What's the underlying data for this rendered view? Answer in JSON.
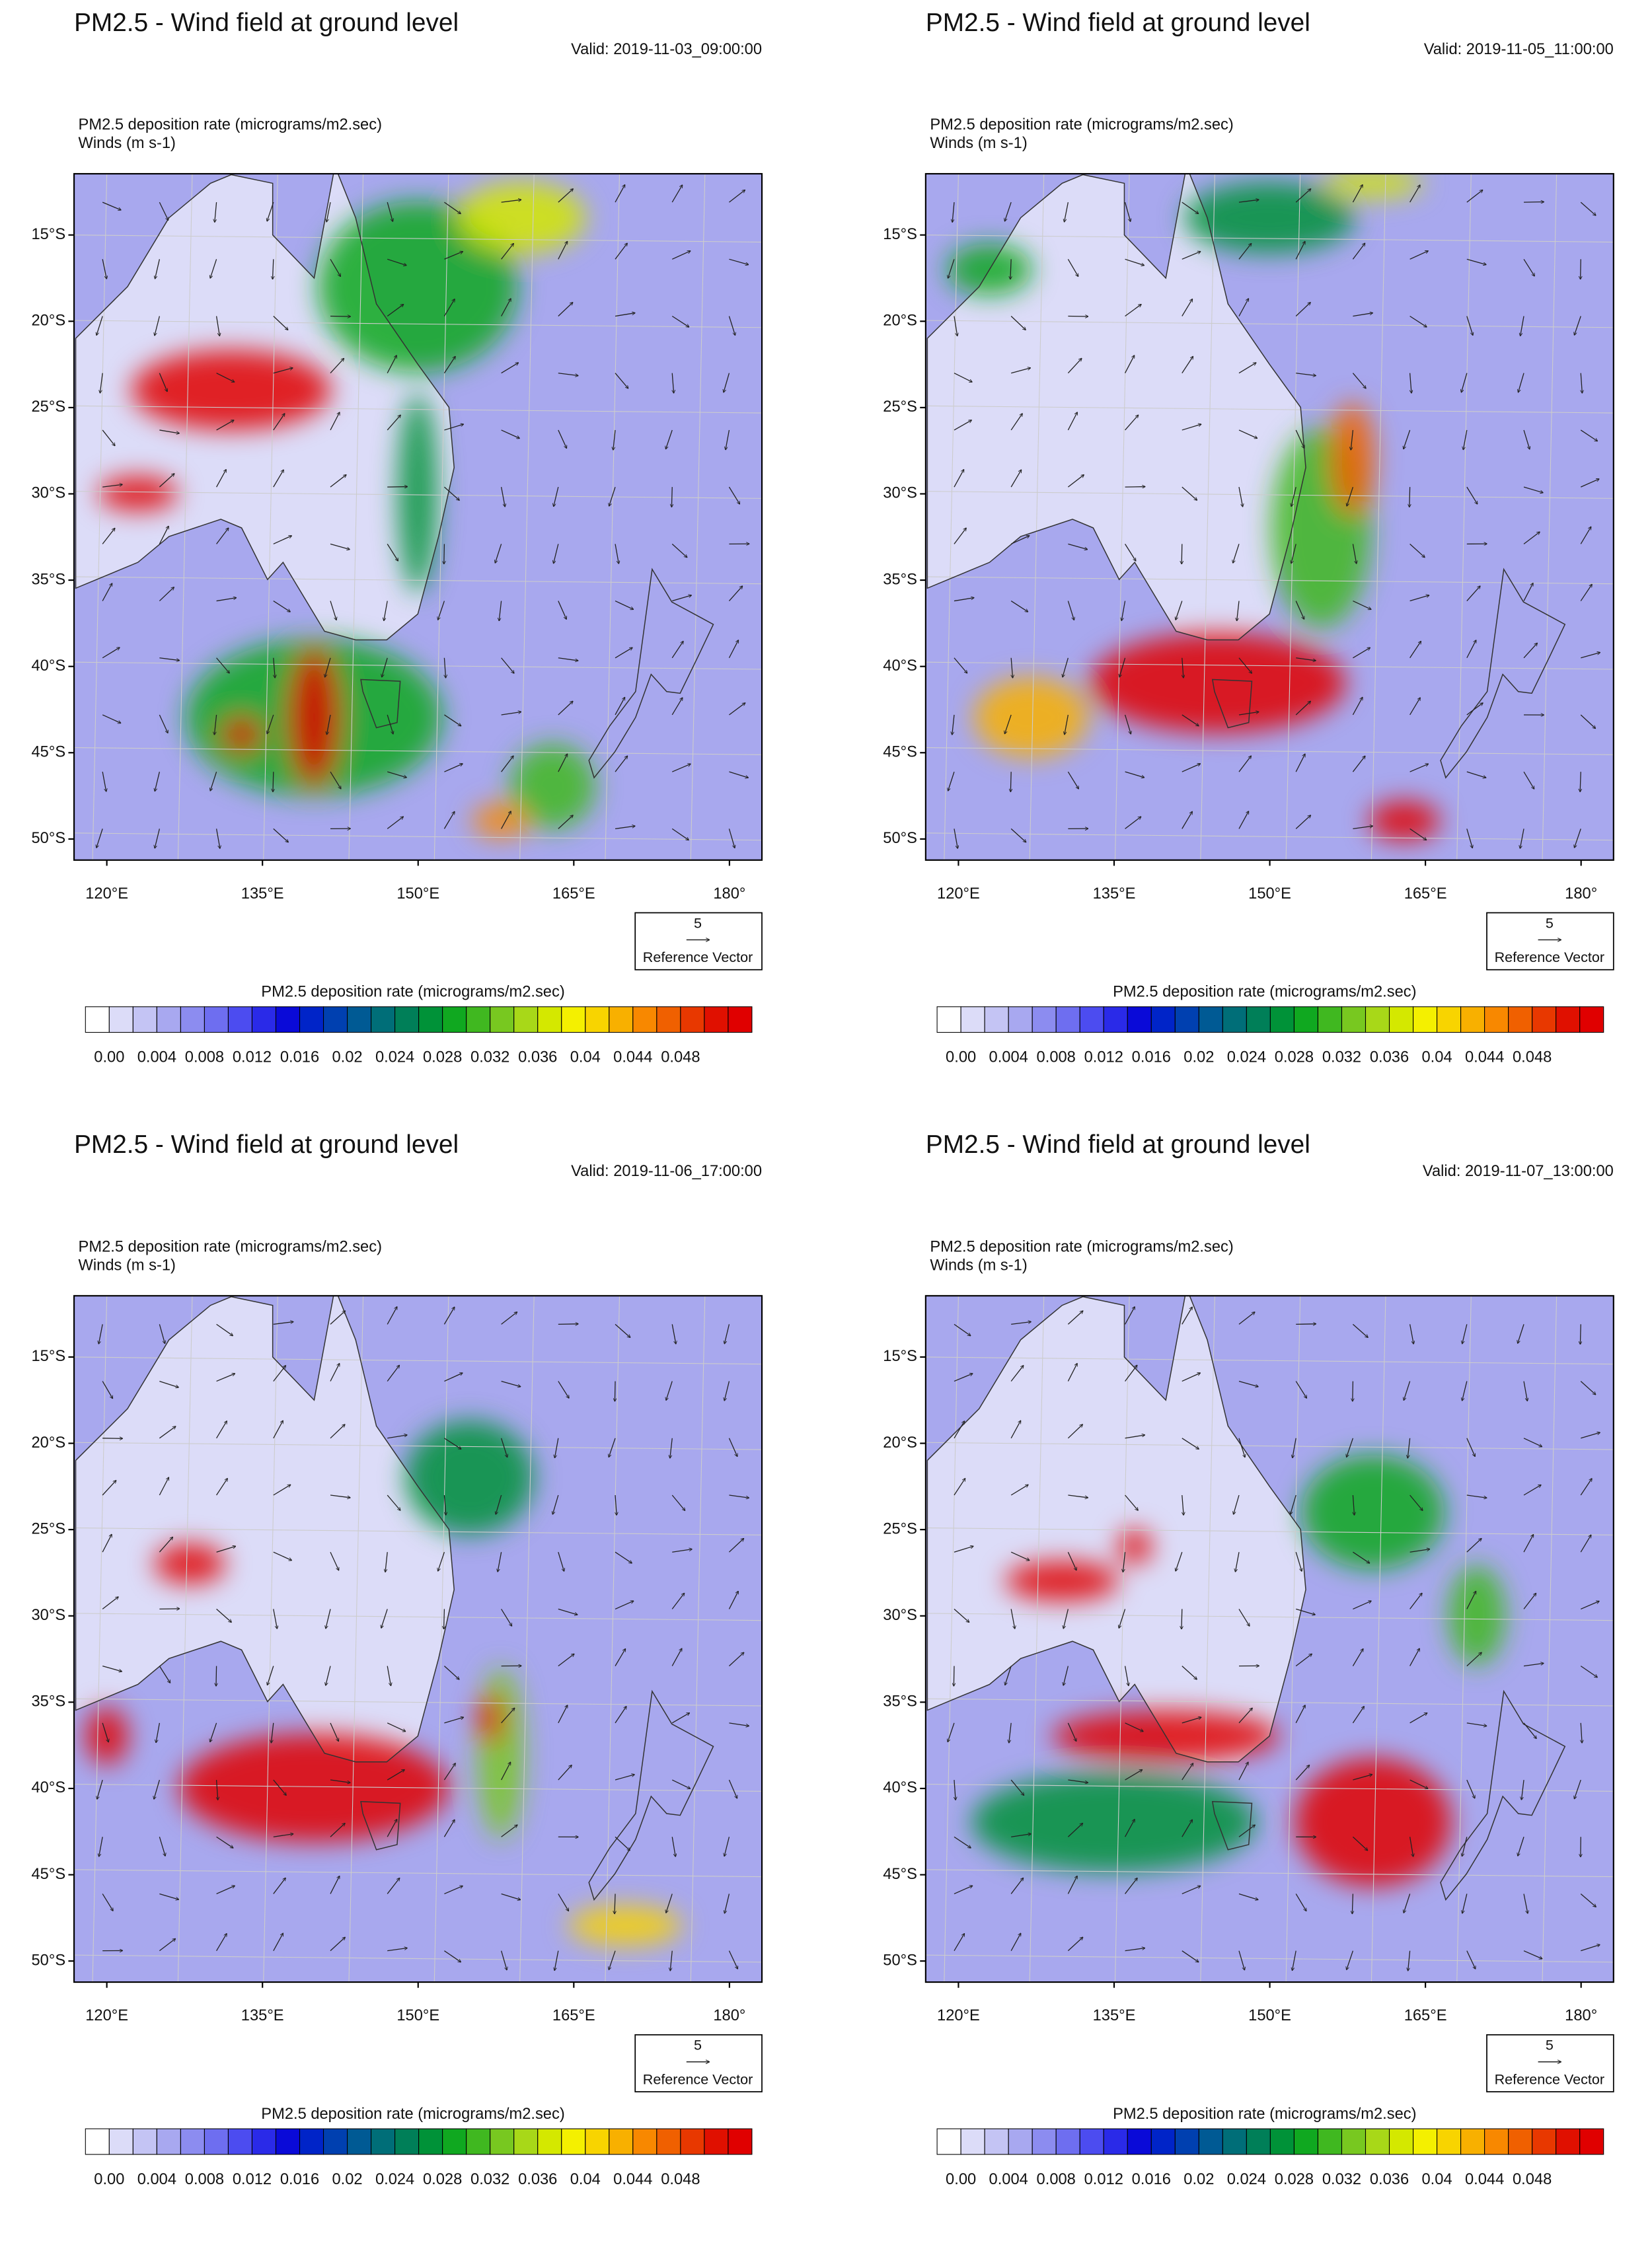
{
  "common": {
    "title": "PM2.5 - Wind field at ground level",
    "field_label": "PM2.5 deposition rate   (micrograms/m2.sec)",
    "wind_label": "Winds   (m s-1)",
    "lat_ticks": [
      "15°S",
      "20°S",
      "25°S",
      "30°S",
      "35°S",
      "40°S",
      "45°S",
      "50°S"
    ],
    "lon_ticks": [
      "120°E",
      "135°E",
      "150°E",
      "165°E",
      "180°"
    ],
    "ref_value": "5",
    "ref_label": "Reference Vector",
    "colorbar_title": "PM2.5 deposition rate  (micrograms/m2.sec)",
    "colorbar_labels": [
      "0.00",
      "0.004",
      "0.008",
      "0.012",
      "0.016",
      "0.02",
      "0.024",
      "0.028",
      "0.032",
      "0.036",
      "0.04",
      "0.044",
      "0.048"
    ],
    "colorbar_colors": [
      "#ffffff",
      "#dcdcf8",
      "#c4c4f4",
      "#a8a8f0",
      "#8c8cf0",
      "#6e6ef0",
      "#4c4cf0",
      "#2a2ae8",
      "#0a0ad8",
      "#0024c8",
      "#0040b0",
      "#005a94",
      "#006e78",
      "#007f58",
      "#009238",
      "#10a820",
      "#40b820",
      "#78c820",
      "#a8d818",
      "#d4e800",
      "#f4f000",
      "#f8d400",
      "#f8b000",
      "#f88800",
      "#f06000",
      "#e83800",
      "#e01000",
      "#e00000"
    ]
  },
  "panels": [
    {
      "valid": "Valid: 2019-11-03_09:00:00"
    },
    {
      "valid": "Valid: 2019-11-05_11:00:00"
    },
    {
      "valid": "Valid: 2019-11-06_17:00:00"
    },
    {
      "valid": "Valid: 2019-11-07_13:00:00"
    }
  ]
}
